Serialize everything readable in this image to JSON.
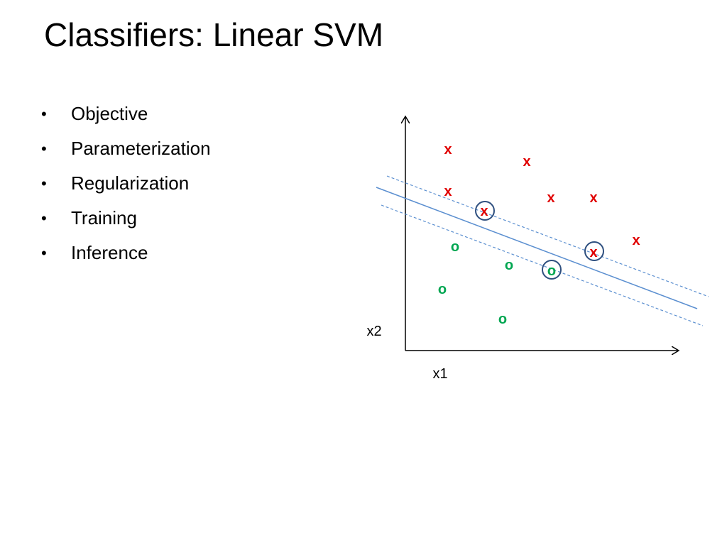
{
  "slide": {
    "title": "Classifiers: Linear SVM",
    "bullets": [
      {
        "label": "Objective"
      },
      {
        "label": "Parameterization"
      },
      {
        "label": "Regularization"
      },
      {
        "label": "Training"
      },
      {
        "label": "Inference"
      }
    ]
  },
  "diagram": {
    "x_axis_label": "x1",
    "y_axis_label": "x2",
    "class_x_symbol": "x",
    "class_o_symbol": "o",
    "colors": {
      "class_x": "#e00000",
      "class_o": "#00a651",
      "boundary": "#5b8fd0",
      "support_circle": "#2e4f7f",
      "axis": "#000000"
    }
  }
}
